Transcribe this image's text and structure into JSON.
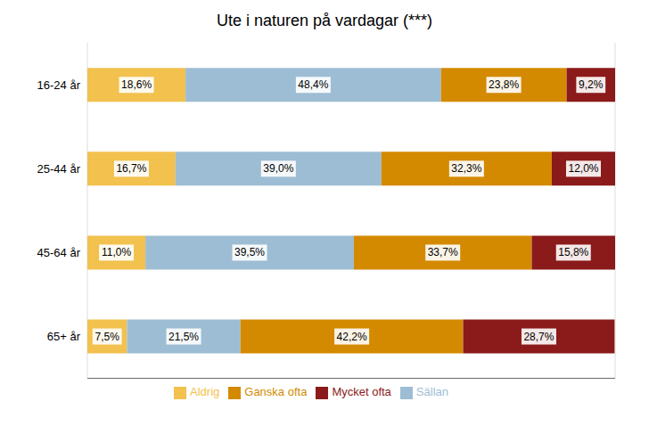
{
  "chart_data": {
    "type": "bar",
    "orientation": "horizontal",
    "stacked": true,
    "title": "Ute i naturen på vardagar (***)",
    "categories": [
      "16-24 år",
      "25-44 år",
      "45-64 år",
      "65+ år"
    ],
    "series": [
      {
        "name": "Aldrig",
        "color": "#F2C14E",
        "values": [
          18.6,
          16.7,
          11.0,
          7.5
        ],
        "value_labels": [
          "18,6%",
          "16,7%",
          "11,0%",
          "7,5%"
        ]
      },
      {
        "name": "Sällan",
        "color": "#9DBDD4",
        "values": [
          48.4,
          39.0,
          39.5,
          21.5
        ],
        "value_labels": [
          "48,4%",
          "39,0%",
          "39,5%",
          "21,5%"
        ]
      },
      {
        "name": "Ganska ofta",
        "color": "#D48A00",
        "values": [
          23.8,
          32.3,
          33.7,
          42.2
        ],
        "value_labels": [
          "23,8%",
          "32,3%",
          "33,7%",
          "42,2%"
        ]
      },
      {
        "name": "Mycket ofta",
        "color": "#8B1A1A",
        "values": [
          9.2,
          12.0,
          15.8,
          28.7
        ],
        "value_labels": [
          "9,2%",
          "12,0%",
          "15,8%",
          "28,7%"
        ]
      }
    ],
    "xlim": [
      0,
      100
    ],
    "xticks": [
      0,
      20,
      40,
      60,
      80,
      100
    ],
    "grid": true,
    "legend": "bottom",
    "data_labels": true,
    "tick_labels": "y"
  }
}
